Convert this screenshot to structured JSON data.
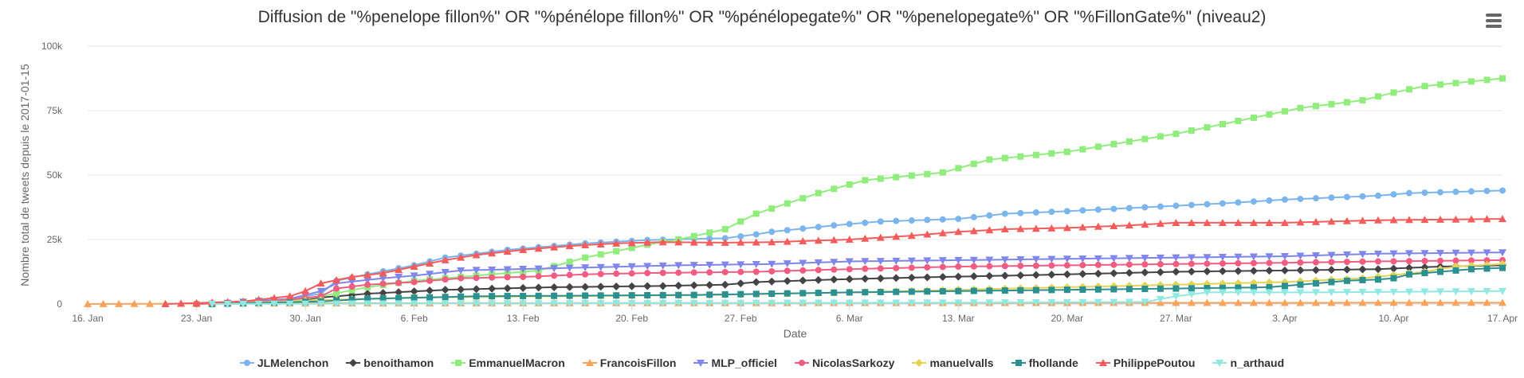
{
  "title": "Diffusion de \"%penelope fillon%\" OR \"%pénélope fillon%\" OR \"%pénélopegate%\" OR \"%penelopegate%\" OR \"%FillonGate%\" (niveau2)",
  "menu_icon": "hamburger-menu-icon",
  "chart_data": {
    "type": "line",
    "title": "Diffusion de \"%penelope fillon%\" OR \"%pénélope fillon%\" OR \"%pénélopegate%\" OR \"%penelopegate%\" OR \"%FillonGate%\" (niveau2)",
    "xlabel": "Date",
    "ylabel": "Nombre total de tweets depuis le 2017-01-15",
    "x_start": "2017-01-16",
    "x_end": "2017-04-17",
    "x_ticks": [
      "16. Jan",
      "23. Jan",
      "30. Jan",
      "6. Feb",
      "13. Feb",
      "20. Feb",
      "27. Feb",
      "6. Mar",
      "13. Mar",
      "20. Mar",
      "27. Mar",
      "3. Apr",
      "10. Apr",
      "17. Apr"
    ],
    "y_ticks": [
      "0",
      "25k",
      "50k",
      "75k",
      "100k"
    ],
    "ylim": [
      0,
      100000
    ],
    "grid": true,
    "legend_position": "bottom",
    "series": [
      {
        "name": "JLMelenchon",
        "color": "#7cb5ec",
        "marker": "circle",
        "points": [
          [
            "2017-01-23",
            0
          ],
          [
            "2017-01-28",
            1000
          ],
          [
            "2017-01-31",
            4000
          ],
          [
            "2017-02-01",
            9000
          ],
          [
            "2017-02-03",
            11500
          ],
          [
            "2017-02-06",
            15000
          ],
          [
            "2017-02-08",
            18000
          ],
          [
            "2017-02-12",
            21000
          ],
          [
            "2017-02-17",
            23500
          ],
          [
            "2017-02-21",
            24800
          ],
          [
            "2017-02-26",
            25500
          ],
          [
            "2017-02-28",
            27000
          ],
          [
            "2017-03-01",
            28000
          ],
          [
            "2017-03-05",
            30500
          ],
          [
            "2017-03-08",
            32000
          ],
          [
            "2017-03-13",
            33000
          ],
          [
            "2017-03-16",
            35000
          ],
          [
            "2017-03-20",
            36000
          ],
          [
            "2017-03-25",
            37500
          ],
          [
            "2017-03-30",
            39000
          ],
          [
            "2017-04-03",
            40500
          ],
          [
            "2017-04-09",
            42000
          ],
          [
            "2017-04-11",
            43000
          ],
          [
            "2017-04-17",
            44000
          ]
        ]
      },
      {
        "name": "benoithamon",
        "color": "#434348",
        "marker": "diamond",
        "points": [
          [
            "2017-01-24",
            0
          ],
          [
            "2017-01-29",
            1000
          ],
          [
            "2017-01-31",
            2500
          ],
          [
            "2017-02-03",
            4000
          ],
          [
            "2017-02-08",
            5500
          ],
          [
            "2017-02-15",
            6500
          ],
          [
            "2017-02-22",
            7000
          ],
          [
            "2017-02-26",
            7500
          ],
          [
            "2017-02-28",
            8500
          ],
          [
            "2017-03-05",
            9500
          ],
          [
            "2017-03-12",
            10500
          ],
          [
            "2017-03-20",
            11500
          ],
          [
            "2017-03-27",
            12500
          ],
          [
            "2017-04-03",
            13000
          ],
          [
            "2017-04-09",
            13500
          ],
          [
            "2017-04-13",
            14500
          ],
          [
            "2017-04-17",
            15000
          ]
        ]
      },
      {
        "name": "EmmanuelMacron",
        "color": "#90ed7d",
        "marker": "square",
        "points": [
          [
            "2017-01-23",
            0
          ],
          [
            "2017-01-29",
            1000
          ],
          [
            "2017-01-31",
            3000
          ],
          [
            "2017-02-03",
            6500
          ],
          [
            "2017-02-06",
            9000
          ],
          [
            "2017-02-10",
            11000
          ],
          [
            "2017-02-14",
            13000
          ],
          [
            "2017-02-17",
            18000
          ],
          [
            "2017-02-21",
            23000
          ],
          [
            "2017-02-23",
            25000
          ],
          [
            "2017-02-26",
            29000
          ],
          [
            "2017-02-28",
            35000
          ],
          [
            "2017-03-02",
            39000
          ],
          [
            "2017-03-04",
            43000
          ],
          [
            "2017-03-07",
            48000
          ],
          [
            "2017-03-12",
            51000
          ],
          [
            "2017-03-15",
            56000
          ],
          [
            "2017-03-20",
            59000
          ],
          [
            "2017-03-24",
            63000
          ],
          [
            "2017-03-27",
            66000
          ],
          [
            "2017-03-31",
            71000
          ],
          [
            "2017-04-04",
            76000
          ],
          [
            "2017-04-08",
            79000
          ],
          [
            "2017-04-10",
            82000
          ],
          [
            "2017-04-12",
            84500
          ],
          [
            "2017-04-17",
            87500
          ]
        ]
      },
      {
        "name": "FrancoisFillon",
        "color": "#f7a35c",
        "marker": "triangle",
        "points": [
          [
            "2017-01-16",
            0
          ],
          [
            "2017-01-31",
            300
          ],
          [
            "2017-02-28",
            400
          ],
          [
            "2017-04-17",
            500
          ]
        ]
      },
      {
        "name": "MLP_officiel",
        "color": "#8085e9",
        "marker": "triangle-down",
        "points": [
          [
            "2017-01-24",
            0
          ],
          [
            "2017-01-29",
            2000
          ],
          [
            "2017-01-31",
            5000
          ],
          [
            "2017-02-01",
            8000
          ],
          [
            "2017-02-04",
            10000
          ],
          [
            "2017-02-06",
            11000
          ],
          [
            "2017-02-09",
            13000
          ],
          [
            "2017-02-16",
            14000
          ],
          [
            "2017-02-23",
            15000
          ],
          [
            "2017-03-01",
            15500
          ],
          [
            "2017-03-06",
            16500
          ],
          [
            "2017-03-13",
            17000
          ],
          [
            "2017-03-20",
            17500
          ],
          [
            "2017-03-27",
            18000
          ],
          [
            "2017-04-03",
            18500
          ],
          [
            "2017-04-09",
            19500
          ],
          [
            "2017-04-17",
            20000
          ]
        ]
      },
      {
        "name": "NicolasSarkozy",
        "color": "#f15c80",
        "marker": "circle",
        "points": [
          [
            "2017-01-23",
            0
          ],
          [
            "2017-01-28",
            1000
          ],
          [
            "2017-01-31",
            3000
          ],
          [
            "2017-02-01",
            6000
          ],
          [
            "2017-02-03",
            7500
          ],
          [
            "2017-02-06",
            8500
          ],
          [
            "2017-02-09",
            10000
          ],
          [
            "2017-02-13",
            10500
          ],
          [
            "2017-02-17",
            11500
          ],
          [
            "2017-02-21",
            12000
          ],
          [
            "2017-02-28",
            12500
          ],
          [
            "2017-03-06",
            13500
          ],
          [
            "2017-03-13",
            14500
          ],
          [
            "2017-03-20",
            15000
          ],
          [
            "2017-03-27",
            15500
          ],
          [
            "2017-04-03",
            16000
          ],
          [
            "2017-04-09",
            16500
          ],
          [
            "2017-04-17",
            17000
          ]
        ]
      },
      {
        "name": "manuelvalls",
        "color": "#e4d354",
        "marker": "diamond",
        "points": [
          [
            "2017-01-24",
            0
          ],
          [
            "2017-01-31",
            1500
          ],
          [
            "2017-02-06",
            2500
          ],
          [
            "2017-02-15",
            3000
          ],
          [
            "2017-02-25",
            3500
          ],
          [
            "2017-03-06",
            4500
          ],
          [
            "2017-03-13",
            5500
          ],
          [
            "2017-03-20",
            6500
          ],
          [
            "2017-03-27",
            7500
          ],
          [
            "2017-04-03",
            8500
          ],
          [
            "2017-04-08",
            10000
          ],
          [
            "2017-04-12",
            12500
          ],
          [
            "2017-04-14",
            14500
          ],
          [
            "2017-04-17",
            15500
          ]
        ]
      },
      {
        "name": "fhollande",
        "color": "#2b908f",
        "marker": "square",
        "points": [
          [
            "2017-01-24",
            0
          ],
          [
            "2017-01-31",
            1000
          ],
          [
            "2017-02-03",
            2000
          ],
          [
            "2017-02-10",
            3000
          ],
          [
            "2017-02-24",
            3500
          ],
          [
            "2017-03-06",
            4500
          ],
          [
            "2017-03-13",
            5000
          ],
          [
            "2017-03-20",
            5500
          ],
          [
            "2017-03-27",
            6000
          ],
          [
            "2017-04-02",
            6500
          ],
          [
            "2017-04-05",
            8000
          ],
          [
            "2017-04-07",
            9000
          ],
          [
            "2017-04-09",
            9500
          ],
          [
            "2017-04-10",
            10000
          ],
          [
            "2017-04-11",
            11500
          ],
          [
            "2017-04-13",
            12500
          ],
          [
            "2017-04-15",
            13500
          ],
          [
            "2017-04-17",
            14000
          ]
        ]
      },
      {
        "name": "PhilippePoutou",
        "color": "#f45b5b",
        "marker": "triangle",
        "points": [
          [
            "2017-01-21",
            0
          ],
          [
            "2017-01-26",
            1000
          ],
          [
            "2017-01-29",
            3000
          ],
          [
            "2017-01-30",
            5000
          ],
          [
            "2017-01-31",
            8000
          ],
          [
            "2017-02-02",
            10500
          ],
          [
            "2017-02-04",
            12000
          ],
          [
            "2017-02-06",
            14500
          ],
          [
            "2017-02-08",
            17000
          ],
          [
            "2017-02-10",
            19000
          ],
          [
            "2017-02-13",
            21000
          ],
          [
            "2017-02-16",
            22500
          ],
          [
            "2017-02-19",
            23500
          ],
          [
            "2017-02-22",
            24000
          ],
          [
            "2017-02-26",
            23800
          ],
          [
            "2017-03-01",
            24000
          ],
          [
            "2017-03-06",
            25000
          ],
          [
            "2017-03-10",
            26500
          ],
          [
            "2017-03-13",
            28000
          ],
          [
            "2017-03-16",
            29000
          ],
          [
            "2017-03-20",
            29500
          ],
          [
            "2017-03-24",
            30500
          ],
          [
            "2017-03-27",
            31500
          ],
          [
            "2017-04-03",
            31500
          ],
          [
            "2017-04-09",
            32500
          ],
          [
            "2017-04-17",
            33000
          ]
        ]
      },
      {
        "name": "n_arthaud",
        "color": "#91e8e1",
        "marker": "triangle-down",
        "points": [
          [
            "2017-01-24",
            0
          ],
          [
            "2017-02-06",
            200
          ],
          [
            "2017-03-13",
            500
          ],
          [
            "2017-03-25",
            800
          ],
          [
            "2017-03-27",
            3000
          ],
          [
            "2017-03-29",
            4500
          ],
          [
            "2017-04-05",
            4500
          ],
          [
            "2017-04-17",
            5000
          ]
        ]
      }
    ]
  }
}
